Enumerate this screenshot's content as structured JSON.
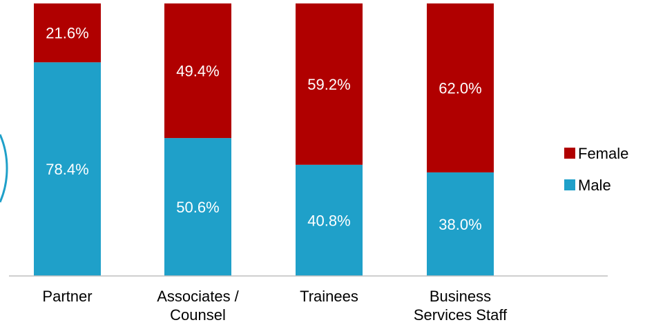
{
  "chart_data": {
    "type": "bar",
    "stacked": true,
    "categories": [
      [
        "Partner"
      ],
      [
        "Associates /",
        "Counsel"
      ],
      [
        "Trainees"
      ],
      [
        "Business",
        "Services Staff"
      ]
    ],
    "series": [
      {
        "name": "Male",
        "color": "#1FA0C9",
        "values": [
          78.4,
          50.6,
          40.8,
          38.0
        ],
        "labels": [
          "78.4%",
          "50.6%",
          "40.8%",
          "38.0%"
        ]
      },
      {
        "name": "Female",
        "color": "#B00000",
        "values": [
          21.6,
          49.4,
          59.2,
          62.0
        ],
        "labels": [
          "21.6%",
          "49.4%",
          "59.2%",
          "62.0%"
        ]
      }
    ],
    "legend": {
      "position": "right",
      "entries": [
        "Female",
        "Male"
      ]
    },
    "ylim": [
      0,
      100
    ],
    "grid": false
  }
}
